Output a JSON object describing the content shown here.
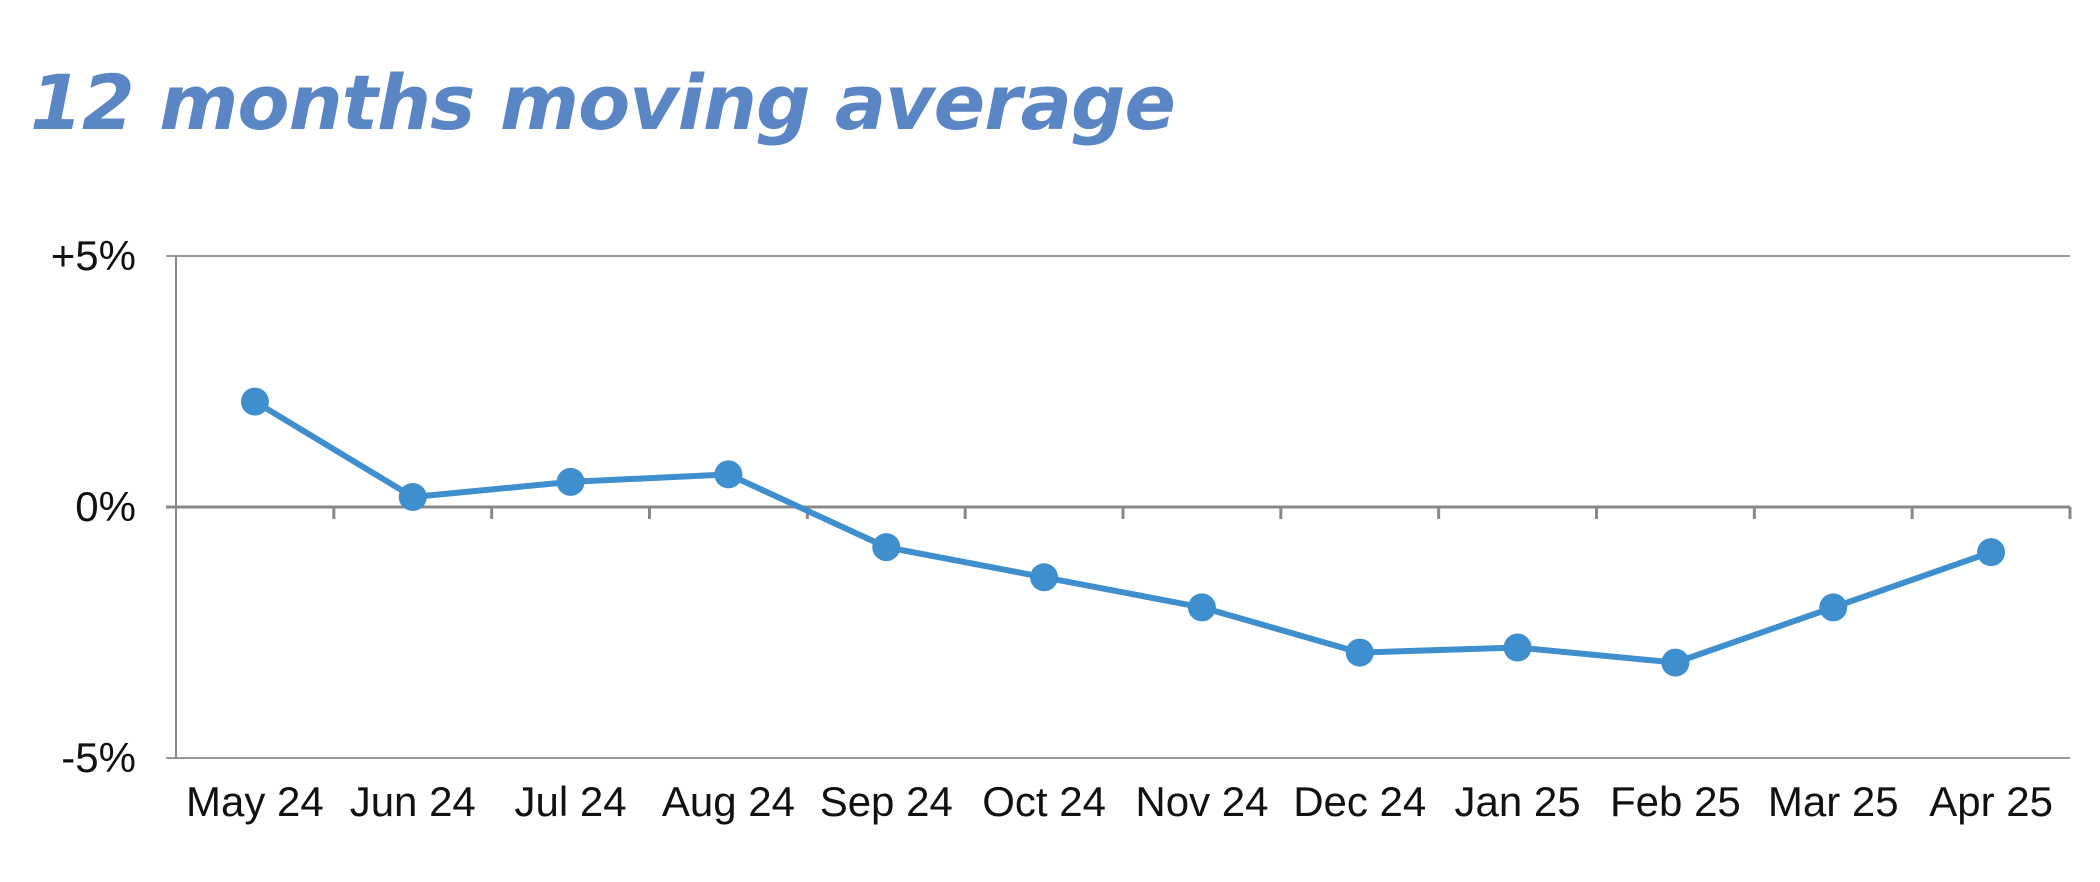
{
  "chart_data": {
    "type": "line",
    "title": "12 months moving average",
    "xlabel": "",
    "ylabel": "",
    "categories": [
      "May 24",
      "Jun 24",
      "Jul 24",
      "Aug 24",
      "Sep 24",
      "Oct 24",
      "Nov 24",
      "Dec 24",
      "Jan 25",
      "Feb 25",
      "Mar 25",
      "Apr 25"
    ],
    "series": [
      {
        "values": [
          2.1,
          0.2,
          0.5,
          0.65,
          -0.8,
          -1.4,
          -2.0,
          -2.9,
          -2.8,
          -3.1,
          -2.0,
          -0.9
        ],
        "color": "#3f8fcf"
      }
    ],
    "y_ticks": [
      {
        "value": 5,
        "label": "+5%"
      },
      {
        "value": 0,
        "label": "0%"
      },
      {
        "value": -5,
        "label": "-5%"
      }
    ],
    "ylim": [
      -5,
      5
    ],
    "grid": "top gridline only",
    "legend": "none",
    "colors": {
      "title": "#5b86c5",
      "series": "#3f8fcf",
      "axis": "#888888"
    }
  }
}
